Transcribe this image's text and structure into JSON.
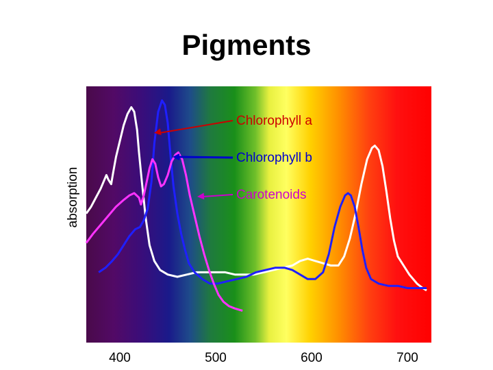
{
  "slide": {
    "title": "Pigments"
  },
  "chart_data": {
    "type": "line",
    "title": "",
    "xlabel": "",
    "ylabel": "absorption",
    "xlim": [
      365,
      725
    ],
    "ylim": [
      0,
      1
    ],
    "x_ticks": [
      "400",
      "500",
      "600",
      "700"
    ],
    "grid": false,
    "background": "visible light spectrum (violet to red)",
    "series": [
      {
        "name": "Chlorophyll a",
        "color": "#ffffff",
        "points": [
          [
            365,
            0.48
          ],
          [
            370,
            0.51
          ],
          [
            375,
            0.55
          ],
          [
            380,
            0.59
          ],
          [
            384,
            0.63
          ],
          [
            386,
            0.65
          ],
          [
            388,
            0.63
          ],
          [
            391,
            0.61
          ],
          [
            393,
            0.66
          ],
          [
            396,
            0.73
          ],
          [
            400,
            0.8
          ],
          [
            404,
            0.87
          ],
          [
            408,
            0.92
          ],
          [
            412,
            0.95
          ],
          [
            415,
            0.93
          ],
          [
            418,
            0.85
          ],
          [
            420,
            0.75
          ],
          [
            423,
            0.62
          ],
          [
            427,
            0.46
          ],
          [
            431,
            0.34
          ],
          [
            436,
            0.27
          ],
          [
            442,
            0.23
          ],
          [
            450,
            0.21
          ],
          [
            460,
            0.2
          ],
          [
            470,
            0.21
          ],
          [
            480,
            0.22
          ],
          [
            490,
            0.22
          ],
          [
            500,
            0.22
          ],
          [
            510,
            0.22
          ],
          [
            520,
            0.21
          ],
          [
            530,
            0.21
          ],
          [
            540,
            0.21
          ],
          [
            550,
            0.22
          ],
          [
            560,
            0.23
          ],
          [
            570,
            0.24
          ],
          [
            580,
            0.25
          ],
          [
            588,
            0.27
          ],
          [
            596,
            0.28
          ],
          [
            604,
            0.27
          ],
          [
            612,
            0.26
          ],
          [
            620,
            0.25
          ],
          [
            628,
            0.25
          ],
          [
            634,
            0.29
          ],
          [
            640,
            0.37
          ],
          [
            646,
            0.48
          ],
          [
            652,
            0.61
          ],
          [
            658,
            0.72
          ],
          [
            663,
            0.77
          ],
          [
            666,
            0.78
          ],
          [
            670,
            0.76
          ],
          [
            674,
            0.69
          ],
          [
            678,
            0.58
          ],
          [
            682,
            0.46
          ],
          [
            686,
            0.36
          ],
          [
            690,
            0.29
          ],
          [
            696,
            0.25
          ],
          [
            702,
            0.21
          ],
          [
            710,
            0.17
          ],
          [
            716,
            0.15
          ],
          [
            720,
            0.14
          ]
        ]
      },
      {
        "name": "Chlorophyll b",
        "color": "#1f1fff",
        "points": [
          [
            378,
            0.22
          ],
          [
            385,
            0.24
          ],
          [
            392,
            0.27
          ],
          [
            398,
            0.3
          ],
          [
            404,
            0.34
          ],
          [
            410,
            0.38
          ],
          [
            416,
            0.41
          ],
          [
            421,
            0.42
          ],
          [
            425,
            0.45
          ],
          [
            429,
            0.5
          ],
          [
            433,
            0.62
          ],
          [
            436,
            0.79
          ],
          [
            440,
            0.93
          ],
          [
            444,
            0.98
          ],
          [
            447,
            0.96
          ],
          [
            450,
            0.88
          ],
          [
            453,
            0.73
          ],
          [
            456,
            0.6
          ],
          [
            460,
            0.48
          ],
          [
            464,
            0.39
          ],
          [
            468,
            0.32
          ],
          [
            472,
            0.26
          ],
          [
            478,
            0.22
          ],
          [
            486,
            0.19
          ],
          [
            494,
            0.17
          ],
          [
            502,
            0.17
          ],
          [
            512,
            0.18
          ],
          [
            522,
            0.19
          ],
          [
            532,
            0.2
          ],
          [
            542,
            0.22
          ],
          [
            552,
            0.23
          ],
          [
            562,
            0.24
          ],
          [
            572,
            0.24
          ],
          [
            580,
            0.23
          ],
          [
            588,
            0.21
          ],
          [
            596,
            0.19
          ],
          [
            604,
            0.19
          ],
          [
            612,
            0.22
          ],
          [
            618,
            0.3
          ],
          [
            624,
            0.42
          ],
          [
            630,
            0.51
          ],
          [
            635,
            0.56
          ],
          [
            638,
            0.57
          ],
          [
            641,
            0.56
          ],
          [
            645,
            0.51
          ],
          [
            649,
            0.42
          ],
          [
            653,
            0.32
          ],
          [
            657,
            0.24
          ],
          [
            662,
            0.19
          ],
          [
            670,
            0.17
          ],
          [
            680,
            0.16
          ],
          [
            690,
            0.16
          ],
          [
            700,
            0.15
          ],
          [
            710,
            0.15
          ],
          [
            720,
            0.15
          ]
        ]
      },
      {
        "name": "Carotenoids",
        "color": "#ff33ff",
        "points": [
          [
            365,
            0.35
          ],
          [
            372,
            0.39
          ],
          [
            380,
            0.43
          ],
          [
            388,
            0.47
          ],
          [
            396,
            0.51
          ],
          [
            404,
            0.54
          ],
          [
            410,
            0.56
          ],
          [
            415,
            0.57
          ],
          [
            420,
            0.55
          ],
          [
            422,
            0.52
          ],
          [
            425,
            0.56
          ],
          [
            428,
            0.62
          ],
          [
            431,
            0.68
          ],
          [
            434,
            0.72
          ],
          [
            437,
            0.7
          ],
          [
            440,
            0.64
          ],
          [
            443,
            0.6
          ],
          [
            446,
            0.61
          ],
          [
            450,
            0.65
          ],
          [
            454,
            0.71
          ],
          [
            458,
            0.74
          ],
          [
            461,
            0.75
          ],
          [
            465,
            0.72
          ],
          [
            469,
            0.65
          ],
          [
            473,
            0.56
          ],
          [
            478,
            0.47
          ],
          [
            483,
            0.38
          ],
          [
            488,
            0.3
          ],
          [
            493,
            0.23
          ],
          [
            498,
            0.17
          ],
          [
            503,
            0.12
          ],
          [
            508,
            0.09
          ],
          [
            514,
            0.07
          ],
          [
            520,
            0.06
          ],
          [
            528,
            0.05
          ]
        ]
      }
    ],
    "annotations": [
      {
        "text": "Chlorophyll a",
        "color": "#cc0000"
      },
      {
        "text": "Chlorophyll b",
        "color": "#0000cc"
      },
      {
        "text": "Carotenoids",
        "color": "#cc00cc"
      }
    ]
  }
}
